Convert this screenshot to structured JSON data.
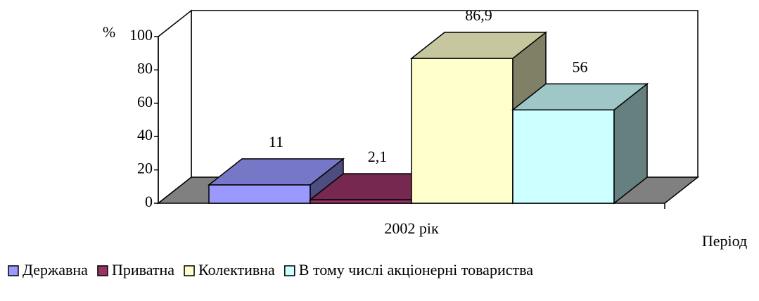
{
  "chart_data": {
    "type": "bar3d",
    "y_label": "%",
    "x_label": "Період",
    "categories": [
      "2002 рік"
    ],
    "series": [
      {
        "name": "Державна",
        "color": "#9999ff",
        "values": [
          11
        ],
        "value_labels": [
          "11"
        ]
      },
      {
        "name": "Приватна",
        "color": "#993366",
        "values": [
          2.1
        ],
        "value_labels": [
          "2,1"
        ]
      },
      {
        "name": "Колективна",
        "color": "#ffffcc",
        "values": [
          86.9
        ],
        "value_labels": [
          "86,9"
        ]
      },
      {
        "name": "В тому числі акціонерні товариства",
        "color": "#ccffff",
        "values": [
          56
        ],
        "value_labels": [
          "56"
        ]
      }
    ],
    "ylim": [
      0,
      100
    ],
    "yticks": [
      0,
      20,
      40,
      60,
      80,
      100
    ],
    "legend": "bottom"
  }
}
